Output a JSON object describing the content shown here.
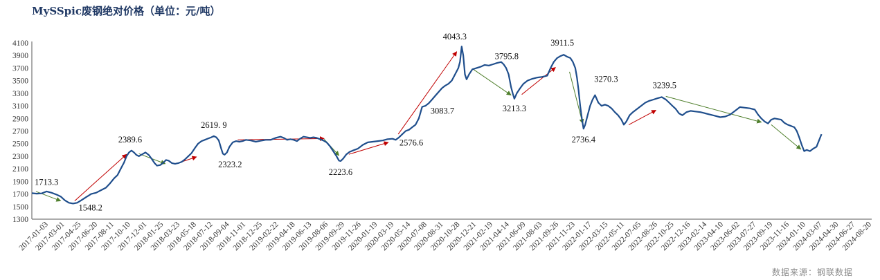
{
  "chart_data": {
    "type": "line",
    "title": "MySSpic废钢绝对价格（单位：元/吨）",
    "source": "数据来源：钢联数据",
    "ylim": [
      1300,
      4100
    ],
    "yticks": [
      1300,
      1500,
      1700,
      1900,
      2100,
      2300,
      2500,
      2700,
      2900,
      3100,
      3300,
      3500,
      3700,
      3900,
      4100
    ],
    "line_color": "#1f4e8c",
    "up_arrow_color": "#c00000",
    "down_arrow_color": "#4f7f2c",
    "grid": false,
    "x_tick_labels": [
      "2017-01-03",
      "2017-03-01",
      "2017-04-25",
      "2017-06-20",
      "2017-08-11",
      "2017-10-10",
      "2017-12-01",
      "2018-01-25",
      "2018-03-23",
      "2018-05-18",
      "2018-07-12",
      "2018-09-04",
      "2018-11-01",
      "2018-12-25",
      "2019-02-22",
      "2019-04-18",
      "2019-06-13",
      "2019-08-06",
      "2019-09-29",
      "2019-11-26",
      "2020-01-19",
      "2020-03-19",
      "2020-05-14",
      "2020-07-08",
      "2020-08-31",
      "2020-10-28",
      "2020-12-21",
      "2021-02-19",
      "2021-04-14",
      "2021-06-09",
      "2021-08-03",
      "2021-09-26",
      "2021-11-23",
      "2022-01-17",
      "2022-03-15",
      "2022-05-11",
      "2022-07-05",
      "2022-08-26",
      "2022-10-25",
      "2022-12-16",
      "2023-02-14",
      "2023-04-10",
      "2023-06-02",
      "2023-07-27",
      "2023-09-19",
      "2023-11-16",
      "2024-01-10",
      "2024-03-07",
      "2024-04-30",
      "2024-06-27",
      "2024-08-20"
    ],
    "series": [
      {
        "points": [
          [
            0,
            1713
          ],
          [
            0.6,
            1705
          ],
          [
            1.2,
            1710
          ],
          [
            1.8,
            1740
          ],
          [
            2.4,
            1720
          ],
          [
            3.0,
            1690
          ],
          [
            3.5,
            1660
          ],
          [
            4.0,
            1600
          ],
          [
            4.5,
            1560
          ],
          [
            5.0,
            1548
          ],
          [
            5.5,
            1560
          ],
          [
            6.0,
            1600
          ],
          [
            6.6,
            1650
          ],
          [
            7.2,
            1700
          ],
          [
            7.8,
            1720
          ],
          [
            8.4,
            1760
          ],
          [
            9.0,
            1800
          ],
          [
            9.5,
            1870
          ],
          [
            10.0,
            1950
          ],
          [
            10.4,
            2000
          ],
          [
            10.8,
            2100
          ],
          [
            11.2,
            2200
          ],
          [
            11.5,
            2300
          ],
          [
            11.8,
            2360
          ],
          [
            12.1,
            2389.6
          ],
          [
            12.4,
            2360
          ],
          [
            12.7,
            2320
          ],
          [
            13.0,
            2300
          ],
          [
            13.4,
            2330
          ],
          [
            13.8,
            2360
          ],
          [
            14.2,
            2320
          ],
          [
            14.6,
            2250
          ],
          [
            14.9,
            2190
          ],
          [
            15.2,
            2150
          ],
          [
            15.6,
            2160
          ],
          [
            16.0,
            2200
          ],
          [
            16.3,
            2240
          ],
          [
            16.6,
            2230
          ],
          [
            17.0,
            2190
          ],
          [
            17.4,
            2180
          ],
          [
            17.8,
            2190
          ],
          [
            18.2,
            2210
          ],
          [
            18.6,
            2250
          ],
          [
            19.0,
            2300
          ],
          [
            19.4,
            2350
          ],
          [
            19.8,
            2430
          ],
          [
            20.2,
            2500
          ],
          [
            20.6,
            2540
          ],
          [
            21.0,
            2560
          ],
          [
            21.4,
            2580
          ],
          [
            21.8,
            2600
          ],
          [
            22.1,
            2619.9
          ],
          [
            22.4,
            2600
          ],
          [
            22.7,
            2550
          ],
          [
            23.0,
            2420
          ],
          [
            23.2,
            2340
          ],
          [
            23.4,
            2323.2
          ],
          [
            23.7,
            2360
          ],
          [
            24.0,
            2450
          ],
          [
            24.4,
            2520
          ],
          [
            24.8,
            2540
          ],
          [
            25.2,
            2530
          ],
          [
            25.6,
            2540
          ],
          [
            26.0,
            2560
          ],
          [
            26.6,
            2550
          ],
          [
            27.2,
            2530
          ],
          [
            27.8,
            2545
          ],
          [
            28.4,
            2560
          ],
          [
            29.0,
            2560
          ],
          [
            29.6,
            2590
          ],
          [
            30.2,
            2610
          ],
          [
            30.6,
            2590
          ],
          [
            31.0,
            2560
          ],
          [
            31.4,
            2570
          ],
          [
            31.8,
            2560
          ],
          [
            32.2,
            2540
          ],
          [
            32.6,
            2580
          ],
          [
            33.0,
            2610
          ],
          [
            33.4,
            2600
          ],
          [
            33.8,
            2590
          ],
          [
            34.2,
            2600
          ],
          [
            34.6,
            2590
          ],
          [
            35.0,
            2570
          ],
          [
            35.4,
            2550
          ],
          [
            35.8,
            2520
          ],
          [
            36.2,
            2460
          ],
          [
            36.6,
            2380
          ],
          [
            37.0,
            2300
          ],
          [
            37.3,
            2230
          ],
          [
            37.5,
            2223.6
          ],
          [
            37.8,
            2260
          ],
          [
            38.2,
            2330
          ],
          [
            38.6,
            2370
          ],
          [
            39.0,
            2390
          ],
          [
            39.6,
            2420
          ],
          [
            40.2,
            2480
          ],
          [
            40.8,
            2520
          ],
          [
            41.4,
            2530
          ],
          [
            42.0,
            2540
          ],
          [
            42.6,
            2550
          ],
          [
            43.2,
            2570
          ],
          [
            43.8,
            2576.6
          ],
          [
            44.2,
            2560
          ],
          [
            44.6,
            2600
          ],
          [
            45.0,
            2650
          ],
          [
            45.4,
            2700
          ],
          [
            45.8,
            2720
          ],
          [
            46.2,
            2760
          ],
          [
            46.6,
            2800
          ],
          [
            47.0,
            2900
          ],
          [
            47.4,
            3083.7
          ],
          [
            47.8,
            3100
          ],
          [
            48.2,
            3140
          ],
          [
            48.6,
            3200
          ],
          [
            49.0,
            3260
          ],
          [
            49.4,
            3320
          ],
          [
            49.8,
            3380
          ],
          [
            50.2,
            3420
          ],
          [
            50.6,
            3450
          ],
          [
            51.0,
            3500
          ],
          [
            51.4,
            3600
          ],
          [
            51.8,
            3700
          ],
          [
            52.0,
            3800
          ],
          [
            52.2,
            4043.3
          ],
          [
            52.4,
            3900
          ],
          [
            52.6,
            3600
          ],
          [
            52.8,
            3520
          ],
          [
            53.1,
            3600
          ],
          [
            53.5,
            3680
          ],
          [
            54.0,
            3700
          ],
          [
            54.5,
            3720
          ],
          [
            55.0,
            3750
          ],
          [
            55.5,
            3740
          ],
          [
            56.0,
            3760
          ],
          [
            56.5,
            3780
          ],
          [
            57.0,
            3795.8
          ],
          [
            57.3,
            3760
          ],
          [
            57.6,
            3700
          ],
          [
            57.9,
            3600
          ],
          [
            58.2,
            3400
          ],
          [
            58.4,
            3300
          ],
          [
            58.6,
            3213.3
          ],
          [
            58.9,
            3300
          ],
          [
            59.3,
            3380
          ],
          [
            59.7,
            3450
          ],
          [
            60.2,
            3500
          ],
          [
            60.8,
            3530
          ],
          [
            61.4,
            3550
          ],
          [
            62.0,
            3560
          ],
          [
            62.6,
            3580
          ],
          [
            63.0,
            3700
          ],
          [
            63.4,
            3800
          ],
          [
            63.8,
            3860
          ],
          [
            64.2,
            3890
          ],
          [
            64.6,
            3911.5
          ],
          [
            65.0,
            3880
          ],
          [
            65.4,
            3860
          ],
          [
            65.7,
            3800
          ],
          [
            66.0,
            3700
          ],
          [
            66.2,
            3550
          ],
          [
            66.4,
            3350
          ],
          [
            66.6,
            3100
          ],
          [
            66.8,
            2900
          ],
          [
            67.0,
            2736.4
          ],
          [
            67.2,
            2800
          ],
          [
            67.5,
            2950
          ],
          [
            67.8,
            3100
          ],
          [
            68.1,
            3200
          ],
          [
            68.4,
            3270.3
          ],
          [
            68.8,
            3150
          ],
          [
            69.2,
            3100
          ],
          [
            69.6,
            3120
          ],
          [
            70.0,
            3100
          ],
          [
            70.4,
            3060
          ],
          [
            70.8,
            3000
          ],
          [
            71.2,
            2950
          ],
          [
            71.6,
            2880
          ],
          [
            71.9,
            2800
          ],
          [
            72.2,
            2850
          ],
          [
            72.6,
            2950
          ],
          [
            73.0,
            3000
          ],
          [
            73.5,
            3050
          ],
          [
            74.0,
            3100
          ],
          [
            74.5,
            3150
          ],
          [
            75.0,
            3180
          ],
          [
            75.5,
            3200
          ],
          [
            76.0,
            3220
          ],
          [
            76.5,
            3239.5
          ],
          [
            77.0,
            3200
          ],
          [
            77.4,
            3150
          ],
          [
            77.8,
            3100
          ],
          [
            78.2,
            3050
          ],
          [
            78.6,
            2980
          ],
          [
            79.0,
            2950
          ],
          [
            79.5,
            3000
          ],
          [
            80.0,
            3020
          ],
          [
            80.6,
            3010
          ],
          [
            81.2,
            3000
          ],
          [
            81.8,
            2980
          ],
          [
            82.4,
            2960
          ],
          [
            83.0,
            2940
          ],
          [
            83.6,
            2920
          ],
          [
            84.2,
            2930
          ],
          [
            84.8,
            2960
          ],
          [
            85.4,
            3020
          ],
          [
            86.0,
            3080
          ],
          [
            86.6,
            3070
          ],
          [
            87.2,
            3060
          ],
          [
            87.8,
            3040
          ],
          [
            88.2,
            2960
          ],
          [
            88.6,
            2900
          ],
          [
            89.0,
            2850
          ],
          [
            89.4,
            2820
          ],
          [
            89.8,
            2880
          ],
          [
            90.2,
            2900
          ],
          [
            90.6,
            2890
          ],
          [
            91.0,
            2880
          ],
          [
            91.4,
            2830
          ],
          [
            91.8,
            2800
          ],
          [
            92.2,
            2780
          ],
          [
            92.6,
            2760
          ],
          [
            92.9,
            2700
          ],
          [
            93.2,
            2600
          ],
          [
            93.5,
            2480
          ],
          [
            93.8,
            2380
          ],
          [
            94.1,
            2400
          ],
          [
            94.5,
            2380
          ],
          [
            94.9,
            2420
          ],
          [
            95.3,
            2450
          ],
          [
            95.6,
            2550
          ],
          [
            95.9,
            2650
          ]
        ]
      }
    ],
    "annotations": [
      {
        "text": "1713.3",
        "x": 0.0,
        "y": 1713.3
      },
      {
        "text": "1548.2",
        "x": 5.0,
        "y": 1548.2
      },
      {
        "text": "2389.6",
        "x": 12.1,
        "y": 2389.6
      },
      {
        "text": "2619. 9",
        "x": 22.1,
        "y": 2619.9
      },
      {
        "text": "2323.2",
        "x": 23.4,
        "y": 2323.2
      },
      {
        "text": "2223.6",
        "x": 37.5,
        "y": 2223.6
      },
      {
        "text": "2576.6",
        "x": 43.8,
        "y": 2576.6
      },
      {
        "text": "3083.7",
        "x": 47.4,
        "y": 3083.7
      },
      {
        "text": "4043.3",
        "x": 52.2,
        "y": 4043.3
      },
      {
        "text": "3795.8",
        "x": 57.0,
        "y": 3795.8
      },
      {
        "text": "3213.3",
        "x": 58.6,
        "y": 3213.3
      },
      {
        "text": "3911.5",
        "x": 64.6,
        "y": 3911.5
      },
      {
        "text": "3270.3",
        "x": 68.4,
        "y": 3270.3
      },
      {
        "text": "2736.4",
        "x": 67.0,
        "y": 2736.4
      },
      {
        "text": "3239.5",
        "x": 76.5,
        "y": 3239.5
      }
    ],
    "arrows": [
      {
        "dir": "down",
        "from": [
          0.5,
          1740
        ],
        "to": [
          3.5,
          1590
        ]
      },
      {
        "dir": "up",
        "from": [
          5.2,
          1590
        ],
        "to": [
          11.5,
          2330
        ]
      },
      {
        "dir": "down",
        "from": [
          13.0,
          2340
        ],
        "to": [
          16.2,
          2180
        ]
      },
      {
        "dir": "up",
        "from": [
          17.5,
          2180
        ],
        "to": [
          20.0,
          2290
        ]
      },
      {
        "dir": "up",
        "from": [
          25.0,
          2560
        ],
        "to": [
          35.5,
          2580
        ]
      },
      {
        "dir": "down",
        "from": [
          35.5,
          2570
        ],
        "to": [
          37.3,
          2310
        ]
      },
      {
        "dir": "up",
        "from": [
          38.5,
          2330
        ],
        "to": [
          43.3,
          2520
        ]
      },
      {
        "dir": "up",
        "from": [
          44.5,
          2650
        ],
        "to": [
          51.6,
          3960
        ]
      },
      {
        "dir": "down",
        "from": [
          53.5,
          3690
        ],
        "to": [
          58.2,
          3270
        ]
      },
      {
        "dir": "up",
        "from": [
          59.5,
          3280
        ],
        "to": [
          63.6,
          3710
        ]
      },
      {
        "dir": "down",
        "from": [
          65.3,
          3640
        ],
        "to": [
          66.9,
          2820
        ]
      },
      {
        "dir": "up",
        "from": [
          72.5,
          2800
        ],
        "to": [
          75.8,
          3030
        ]
      },
      {
        "dir": "down",
        "from": [
          77.0,
          3250
        ],
        "to": [
          88.6,
          2840
        ]
      },
      {
        "dir": "down",
        "from": [
          89.8,
          2800
        ],
        "to": [
          93.4,
          2410
        ]
      }
    ]
  }
}
